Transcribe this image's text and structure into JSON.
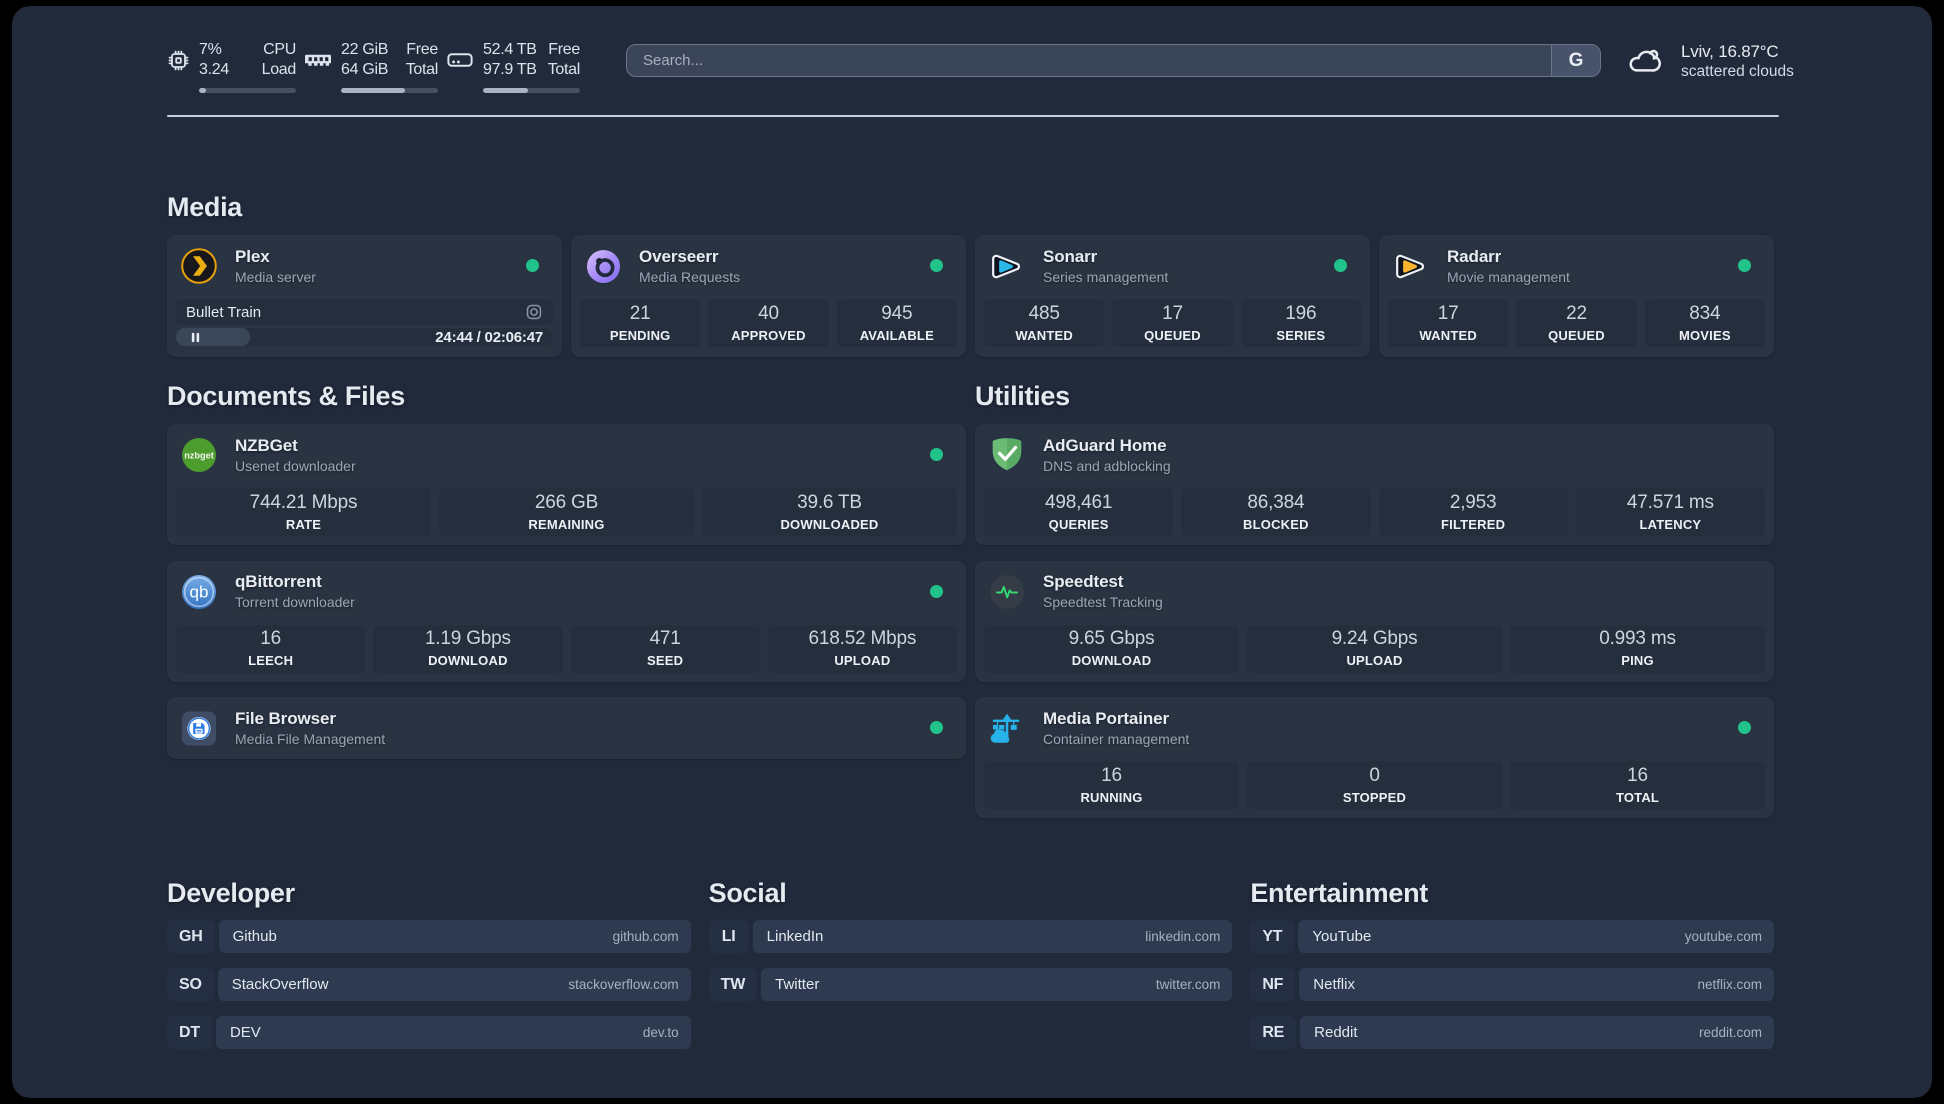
{
  "topbar": {
    "resources": [
      {
        "icon": "cpu-icon",
        "value1": "7%",
        "value2": "3.24",
        "label1": "CPU",
        "label2": "Load",
        "percent": 7
      },
      {
        "icon": "memory-icon",
        "value1": "22 GiB",
        "value2": "64 GiB",
        "label1": "Free",
        "label2": "Total",
        "percent": 65.6
      },
      {
        "icon": "disk-icon",
        "value1": "52.4 TB",
        "value2": "97.9 TB",
        "label1": "Free",
        "label2": "Total",
        "percent": 46.5
      }
    ],
    "search": {
      "placeholder": "Search...",
      "button_label": "G"
    },
    "weather": {
      "line1": "Lviv, 16.87°C",
      "line2": "scattered clouds"
    }
  },
  "media": {
    "title": "Media",
    "plex": {
      "title": "Plex",
      "subtitle": "Media server",
      "online": true,
      "now_playing": {
        "name": "Bullet Train",
        "time": "24:44 / 02:06:47",
        "progress_percent": 19.5
      }
    },
    "overseerr": {
      "title": "Overseerr",
      "subtitle": "Media Requests",
      "online": true,
      "stats": [
        {
          "value": "21",
          "label": "PENDING"
        },
        {
          "value": "40",
          "label": "APPROVED"
        },
        {
          "value": "945",
          "label": "AVAILABLE"
        }
      ]
    },
    "sonarr": {
      "title": "Sonarr",
      "subtitle": "Series management",
      "online": true,
      "stats": [
        {
          "value": "485",
          "label": "WANTED"
        },
        {
          "value": "17",
          "label": "QUEUED"
        },
        {
          "value": "196",
          "label": "SERIES"
        }
      ]
    },
    "radarr": {
      "title": "Radarr",
      "subtitle": "Movie management",
      "online": true,
      "stats": [
        {
          "value": "17",
          "label": "WANTED"
        },
        {
          "value": "22",
          "label": "QUEUED"
        },
        {
          "value": "834",
          "label": "MOVIES"
        }
      ]
    }
  },
  "documents": {
    "title": "Documents & Files",
    "nzbget": {
      "title": "NZBGet",
      "subtitle": "Usenet downloader",
      "online": true,
      "stats": [
        {
          "value": "744.21 Mbps",
          "label": "RATE"
        },
        {
          "value": "266 GB",
          "label": "REMAINING"
        },
        {
          "value": "39.6 TB",
          "label": "DOWNLOADED"
        }
      ]
    },
    "qbittorrent": {
      "title": "qBittorrent",
      "subtitle": "Torrent downloader",
      "online": true,
      "stats": [
        {
          "value": "16",
          "label": "LEECH"
        },
        {
          "value": "1.19 Gbps",
          "label": "DOWNLOAD"
        },
        {
          "value": "471",
          "label": "SEED"
        },
        {
          "value": "618.52 Mbps",
          "label": "UPLOAD"
        }
      ]
    },
    "filebrowser": {
      "title": "File Browser",
      "subtitle": "Media File Management",
      "online": true
    }
  },
  "utilities": {
    "title": "Utilities",
    "adguard": {
      "title": "AdGuard Home",
      "subtitle": "DNS and adblocking",
      "online": false,
      "stats": [
        {
          "value": "498,461",
          "label": "QUERIES"
        },
        {
          "value": "86,384",
          "label": "BLOCKED"
        },
        {
          "value": "2,953",
          "label": "FILTERED"
        },
        {
          "value": "47.571 ms",
          "label": "LATENCY"
        }
      ]
    },
    "speedtest": {
      "title": "Speedtest",
      "subtitle": "Speedtest Tracking",
      "online": false,
      "stats": [
        {
          "value": "9.65 Gbps",
          "label": "DOWNLOAD"
        },
        {
          "value": "9.24 Gbps",
          "label": "UPLOAD"
        },
        {
          "value": "0.993 ms",
          "label": "PING"
        }
      ]
    },
    "portainer": {
      "title": "Media Portainer",
      "subtitle": "Container management",
      "online": true,
      "stats": [
        {
          "value": "16",
          "label": "RUNNING"
        },
        {
          "value": "0",
          "label": "STOPPED"
        },
        {
          "value": "16",
          "label": "TOTAL"
        }
      ]
    }
  },
  "bookmarks": [
    {
      "title": "Developer",
      "items": [
        {
          "abbr": "GH",
          "name": "Github",
          "domain": "github.com"
        },
        {
          "abbr": "SO",
          "name": "StackOverflow",
          "domain": "stackoverflow.com"
        },
        {
          "abbr": "DT",
          "name": "DEV",
          "domain": "dev.to"
        }
      ]
    },
    {
      "title": "Social",
      "items": [
        {
          "abbr": "LI",
          "name": "LinkedIn",
          "domain": "linkedin.com"
        },
        {
          "abbr": "TW",
          "name": "Twitter",
          "domain": "twitter.com"
        }
      ]
    },
    {
      "title": "Entertainment",
      "items": [
        {
          "abbr": "YT",
          "name": "YouTube",
          "domain": "youtube.com"
        },
        {
          "abbr": "NF",
          "name": "Netflix",
          "domain": "netflix.com"
        },
        {
          "abbr": "RE",
          "name": "Reddit",
          "domain": "reddit.com"
        }
      ]
    }
  ]
}
